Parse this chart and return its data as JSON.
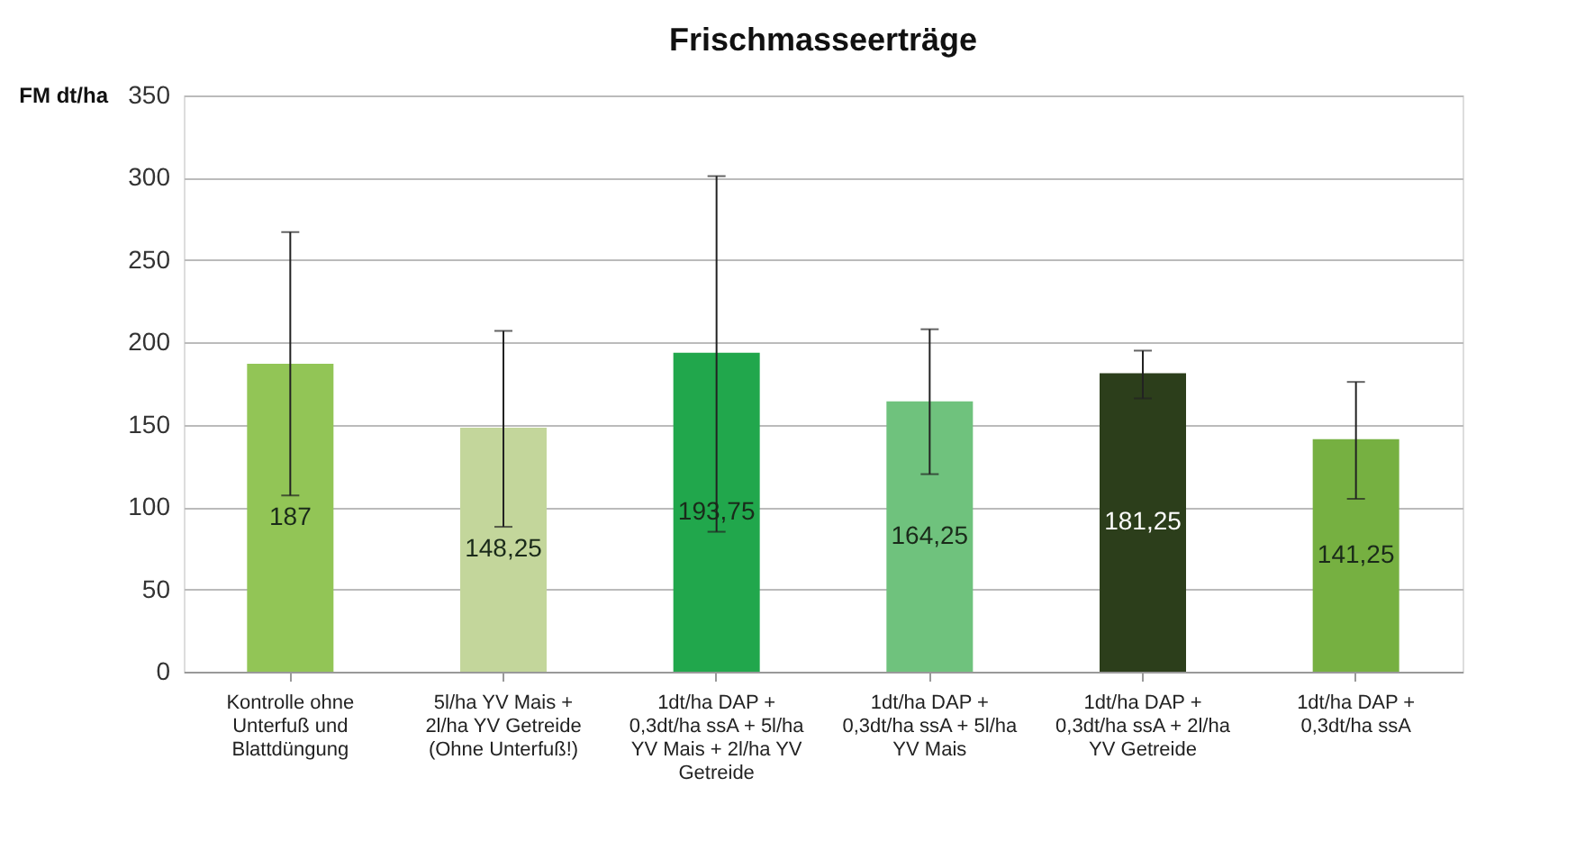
{
  "chart_data": {
    "type": "bar",
    "title": "Frischmasseerträge",
    "ylabel": "FM dt/ha",
    "categories": [
      "Kontrolle ohne Unterfuß und Blattdüngung",
      "5l/ha YV Mais + 2l/ha YV Getreide (Ohne Unterfuß!)",
      "1dt/ha DAP + 0,3dt/ha ssA + 5l/ha YV Mais + 2l/ha YV Getreide",
      "1dt/ha DAP + 0,3dt/ha ssA + 5l/ha YV Mais",
      "1dt/ha DAP + 0,3dt/ha ssA + 2l/ha YV Getreide",
      "1dt/ha DAP + 0,3dt/ha ssA"
    ],
    "values": [
      187,
      148.25,
      193.75,
      164.25,
      181.25,
      141.25
    ],
    "colors": [
      "#92c556",
      "#c3d69b",
      "#21a74c",
      "#6fc27d",
      "#2c3e1b",
      "#76b041"
    ],
    "errors": [
      [
        107,
        267
      ],
      [
        88,
        207
      ],
      [
        85,
        301
      ],
      [
        120,
        208
      ],
      [
        166,
        195
      ],
      [
        105,
        176
      ]
    ],
    "value_labels": [
      "187",
      "148,25",
      "193,75",
      "164,25",
      "181,25",
      "141,25"
    ],
    "ylim": [
      0,
      350
    ],
    "yticks": [
      0,
      50,
      100,
      150,
      200,
      250,
      300,
      350
    ],
    "grid": "y"
  }
}
